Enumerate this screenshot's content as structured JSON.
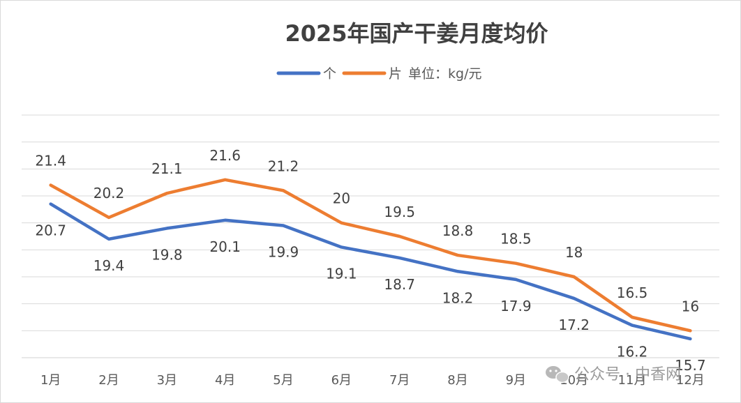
{
  "chart_data": {
    "type": "line",
    "title": "2025年国产干姜月度均价",
    "legend": {
      "items": [
        "个",
        "片"
      ],
      "unit_note": "单位：kg/元",
      "placement": "top"
    },
    "categories": [
      "1月",
      "2月",
      "3月",
      "4月",
      "5月",
      "6月",
      "7月",
      "8月",
      "9月",
      "10月",
      "11月",
      "12月"
    ],
    "series": [
      {
        "name": "个",
        "color": "#4472c4",
        "values": [
          20.7,
          19.4,
          19.8,
          20.1,
          19.9,
          19.1,
          18.7,
          18.2,
          17.9,
          17.2,
          16.2,
          15.7
        ],
        "label_position": "below"
      },
      {
        "name": "片",
        "color": "#ed7d31",
        "values": [
          21.4,
          20.2,
          21.1,
          21.6,
          21.2,
          20,
          19.5,
          18.8,
          18.5,
          18,
          16.5,
          16
        ],
        "label_position": "above"
      }
    ],
    "ylim": [
      15,
      24
    ],
    "grid": true,
    "y_tick_labels_shown": false
  },
  "watermark": {
    "icon": "wechat-icon",
    "text": "公众号 · 中香网"
  }
}
